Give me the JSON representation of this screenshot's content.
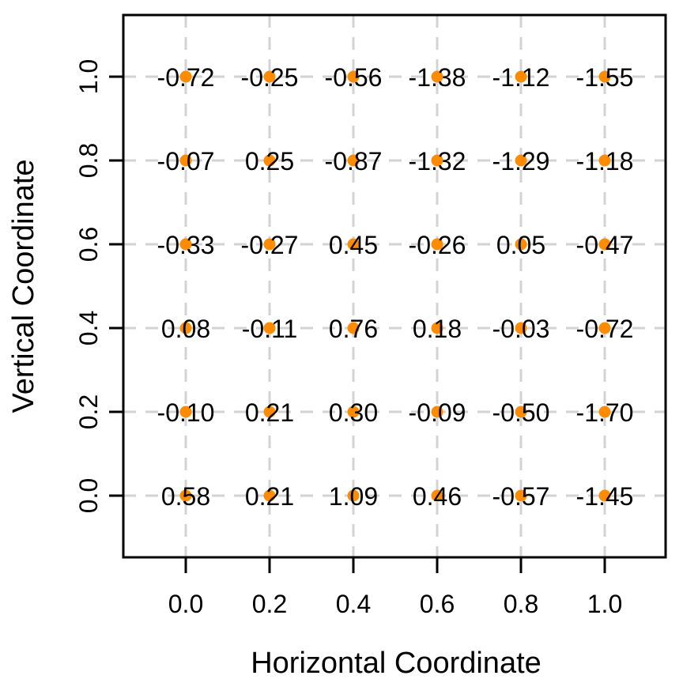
{
  "chart_data": {
    "type": "scatter",
    "title": "",
    "xlabel": "Horizontal Coordinate",
    "ylabel": "Vertical Coordinate",
    "xlim": [
      0,
      1
    ],
    "ylim": [
      0,
      1
    ],
    "grid": true,
    "legend": "none",
    "x_ticks": [
      0.0,
      0.2,
      0.4,
      0.6,
      0.8,
      1.0
    ],
    "y_ticks": [
      0.0,
      0.2,
      0.4,
      0.6,
      0.8,
      1.0
    ],
    "x_tick_labels": [
      "0.0",
      "0.2",
      "0.4",
      "0.6",
      "0.8",
      "1.0"
    ],
    "y_tick_labels": [
      "0.0",
      "0.2",
      "0.4",
      "0.6",
      "0.8",
      "1.0"
    ],
    "point_color": "#FF8C00",
    "grid_color": "#D3D3D3",
    "axis_color": "#000000",
    "text_color": "#000000",
    "columns_x": [
      0.0,
      0.2,
      0.4,
      0.6,
      0.8,
      1.0
    ],
    "rows": [
      {
        "y": 1.0,
        "labels": [
          "-0.72",
          "-0.25",
          "-0.56",
          "-1.38",
          "-1.12",
          "-1.55"
        ]
      },
      {
        "y": 0.8,
        "labels": [
          "-0.07",
          "0.25",
          "-0.87",
          "-1.32",
          "-1.29",
          "-1.18"
        ]
      },
      {
        "y": 0.6,
        "labels": [
          "-0.33",
          "-0.27",
          "0.45",
          "-0.26",
          "0.05",
          "-0.47"
        ]
      },
      {
        "y": 0.4,
        "labels": [
          "0.08",
          "-0.11",
          "0.76",
          "0.18",
          "-0.03",
          "-0.72"
        ]
      },
      {
        "y": 0.2,
        "labels": [
          "-0.10",
          "0.21",
          "0.30",
          "-0.09",
          "-0.50",
          "-1.70"
        ]
      },
      {
        "y": 0.0,
        "labels": [
          "0.58",
          "0.21",
          "1.09",
          "0.46",
          "-0.57",
          "-1.45"
        ]
      }
    ]
  }
}
